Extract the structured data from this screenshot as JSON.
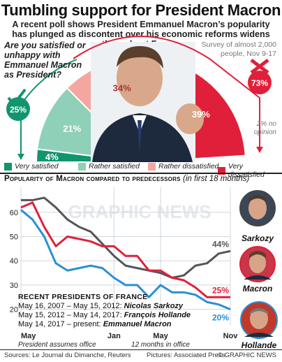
{
  "header": {
    "title": "Tumbling support for President Macron",
    "subtitle": "A recent poll shows President Emmanuel Macron’s popularity has plunged as discontent over his economic reforms widens throughout France"
  },
  "survey": {
    "question": "Are you satisfied or unhappy with Emmanuel Macron as President?",
    "note": "Survey of almost 2,000 people, Nov 9-17",
    "no_opinion": "2% no opinion",
    "satisfied_total": "25%",
    "unhappy_total": "73%"
  },
  "legend": {
    "very_satisfied": "Very satisfied",
    "rather_satisfied": "Rather satisfied",
    "rather_dissatisfied": "Rather dissatisfied",
    "very_dissatisfied": "Very dissatisfied"
  },
  "line_chart_header": {
    "title": "Popularity of Macron compared to predecessors",
    "note": "(in first 18 months)"
  },
  "presidents": {
    "heading": "RECENT PRESIDENTS OF FRANCE",
    "rows": [
      {
        "dates": "May 16, 2007 – May 15, 2012:",
        "name": "Nicolas Sarkozy"
      },
      {
        "dates": "May 15, 2012 – May 14, 2017:",
        "name": "François Hollande"
      },
      {
        "dates": "May 14, 2017 – present:",
        "name": "Emmanuel Macron"
      }
    ]
  },
  "face_labels": {
    "sarkozy": "Sarkozy",
    "macron": "Macron",
    "hollande": "Hollande"
  },
  "footer": {
    "sources": "Sources: Le Journal du Dimanche, Reuters",
    "pictures": "Pictures: Associated Press",
    "credit": "© GRAPHIC NEWS"
  },
  "watermark": "GRAPHIC NEWS",
  "colors": {
    "very_satisfied": "#12956f",
    "rather_satisfied": "#8fd0b8",
    "rather_dissatisfied": "#f4a7a1",
    "very_dissatisfied": "#e0203a",
    "sarkozy_line": "#555555",
    "hollande_line": "#2a8fd6",
    "macron_line": "#e0203a"
  },
  "chart_data": [
    {
      "type": "pie",
      "title": "Are you satisfied or unhappy with Emmanuel Macron as President?",
      "categories": [
        "Very satisfied",
        "Rather satisfied",
        "Rather dissatisfied",
        "Very dissatisfied"
      ],
      "values": [
        4,
        21,
        34,
        39
      ],
      "labels": [
        "4%",
        "21%",
        "34%",
        "39%"
      ],
      "annotations": [
        "25%",
        "73%",
        "2% no opinion"
      ]
    },
    {
      "type": "line",
      "title": "Popularity of Macron compared to predecessors",
      "xlabel": "",
      "ylabel": "",
      "ylim": [
        15,
        68
      ],
      "x_tick_labels": [
        "May",
        "Jan",
        "May",
        "Nov"
      ],
      "x_tick_positions": [
        0,
        8,
        12,
        18
      ],
      "x_tick_notes": [
        "President assumes office",
        "",
        "12 months in office",
        ""
      ],
      "y_ticks": [
        20,
        30,
        40,
        50,
        60
      ],
      "x": [
        0,
        1,
        2,
        3,
        4,
        5,
        6,
        7,
        8,
        9,
        10,
        11,
        12,
        13,
        14,
        15,
        16,
        17,
        18
      ],
      "series": [
        {
          "name": "Sarkozy",
          "end_label": "44%",
          "values": [
            65,
            65,
            66,
            62,
            57,
            54,
            52,
            47,
            42,
            38,
            37,
            36,
            35,
            33,
            34,
            38,
            39,
            43,
            44
          ]
        },
        {
          "name": "Macron",
          "end_label": "25%",
          "values": [
            62,
            64,
            54,
            46,
            50,
            49,
            48,
            46,
            46,
            42,
            42,
            36,
            36,
            33,
            32,
            29,
            25,
            25,
            25
          ]
        },
        {
          "name": "Hollande",
          "end_label": "20%",
          "values": [
            61,
            57,
            50,
            39,
            36,
            37,
            38,
            37,
            33,
            30,
            30,
            25,
            30,
            27,
            27,
            26,
            23,
            22,
            20
          ]
        }
      ]
    }
  ]
}
